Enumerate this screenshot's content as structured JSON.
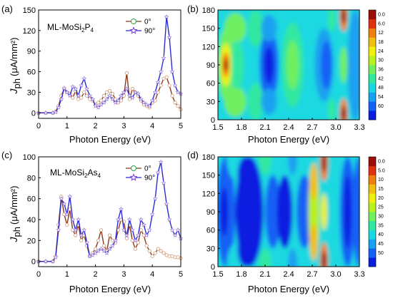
{
  "chart_data": [
    {
      "type": "line",
      "panel": "(a)",
      "xlabel": "Photon Energy (eV)",
      "ylabel_main": "J",
      "ylabel_sub": "ph",
      "ylabel_unit": "(μA/mm²)",
      "annotation": {
        "prefix": "ML-MoSi",
        "sub1": "2",
        "mid": "P",
        "sub2": "4"
      },
      "xlim": [
        0,
        5
      ],
      "ylim": [
        -8,
        150
      ],
      "xticks": [
        0,
        1,
        2,
        3,
        4,
        5
      ],
      "yticks": [
        0,
        30,
        60,
        90,
        120,
        150
      ],
      "series": [
        {
          "name": "0°",
          "color": "#8b3a1a",
          "marker": "circle",
          "x": [
            0,
            0.25,
            0.5,
            0.6,
            0.7,
            0.8,
            0.9,
            1.0,
            1.1,
            1.2,
            1.3,
            1.4,
            1.5,
            1.6,
            1.7,
            1.8,
            1.9,
            2.0,
            2.1,
            2.2,
            2.3,
            2.4,
            2.5,
            2.6,
            2.7,
            2.8,
            2.9,
            3.0,
            3.1,
            3.2,
            3.3,
            3.4,
            3.5,
            3.6,
            3.7,
            3.8,
            3.9,
            4.0,
            4.1,
            4.2,
            4.3,
            4.4,
            4.5,
            4.6,
            4.7,
            4.8,
            4.9,
            5.0
          ],
          "y": [
            0,
            0,
            0,
            2,
            10,
            25,
            35,
            30,
            28,
            22,
            32,
            20,
            22,
            30,
            25,
            20,
            18,
            12,
            15,
            18,
            25,
            30,
            32,
            28,
            20,
            15,
            18,
            25,
            58,
            20,
            35,
            30,
            25,
            18,
            12,
            10,
            8,
            15,
            18,
            30,
            40,
            50,
            52,
            40,
            25,
            15,
            10,
            5
          ]
        },
        {
          "name": "90°",
          "color": "#2b2bd6",
          "marker": "star",
          "x": [
            0,
            0.25,
            0.5,
            0.6,
            0.7,
            0.8,
            0.9,
            1.0,
            1.1,
            1.2,
            1.3,
            1.4,
            1.5,
            1.6,
            1.7,
            1.8,
            1.9,
            2.0,
            2.1,
            2.2,
            2.3,
            2.4,
            2.5,
            2.6,
            2.7,
            2.8,
            2.9,
            3.0,
            3.1,
            3.2,
            3.3,
            3.4,
            3.5,
            3.6,
            3.7,
            3.8,
            3.9,
            4.0,
            4.1,
            4.2,
            4.3,
            4.4,
            4.5,
            4.6,
            4.7,
            4.8,
            4.9,
            5.0
          ],
          "y": [
            0,
            0,
            0,
            1,
            8,
            20,
            36,
            30,
            25,
            38,
            35,
            25,
            40,
            50,
            35,
            25,
            20,
            10,
            8,
            12,
            15,
            20,
            25,
            20,
            15,
            18,
            25,
            30,
            35,
            25,
            22,
            30,
            28,
            20,
            15,
            12,
            10,
            18,
            30,
            45,
            60,
            80,
            140,
            110,
            60,
            40,
            30,
            28
          ]
        }
      ]
    },
    {
      "type": "heatmap",
      "panel": "(b)",
      "xlabel": "Photon Energy (eV)",
      "xlim": [
        1.5,
        3.3
      ],
      "ylim": [
        0,
        180
      ],
      "xticks": [
        "1.5",
        "1.8",
        "2.1",
        "2.4",
        "2.7",
        "3.0",
        "3.3"
      ],
      "yticks": [
        0,
        30,
        60,
        90,
        120,
        150,
        180
      ],
      "colorbar": {
        "ticks": [
          "0.0",
          "6.0",
          "12",
          "18",
          "24",
          "30",
          "36",
          "42",
          "48",
          "54",
          "60"
        ],
        "colors": [
          "#0a1ee0",
          "#1560f5",
          "#1aa0f0",
          "#1ad8e0",
          "#30e8a0",
          "#70f060",
          "#b8f020",
          "#f0f010",
          "#f0c010",
          "#f08010",
          "#e03010",
          "#9a1008"
        ]
      }
    },
    {
      "type": "line",
      "panel": "(c)",
      "xlabel": "Photon Energy (eV)",
      "ylabel_main": "J",
      "ylabel_sub": "ph",
      "ylabel_unit": "(μA/mm²)",
      "annotation": {
        "prefix": "ML-MoSi",
        "sub1": "2",
        "mid": "As",
        "sub2": "4"
      },
      "xlim": [
        0,
        5
      ],
      "ylim": [
        -5,
        100
      ],
      "xticks": [
        0,
        1,
        2,
        3,
        4,
        5
      ],
      "yticks": [
        0,
        20,
        40,
        60,
        80,
        100
      ],
      "series": [
        {
          "name": "0°",
          "color": "#8b3a1a",
          "marker": "circle",
          "x": [
            0,
            0.25,
            0.5,
            0.6,
            0.7,
            0.8,
            0.9,
            1.0,
            1.1,
            1.2,
            1.3,
            1.4,
            1.5,
            1.6,
            1.7,
            1.8,
            1.9,
            2.0,
            2.1,
            2.2,
            2.3,
            2.4,
            2.5,
            2.6,
            2.7,
            2.8,
            2.9,
            3.0,
            3.1,
            3.2,
            3.3,
            3.4,
            3.5,
            3.6,
            3.7,
            3.8,
            3.9,
            4.0,
            4.1,
            4.2,
            4.3,
            4.4,
            4.5,
            4.6,
            4.7,
            4.8,
            4.9,
            5.0
          ],
          "y": [
            0,
            0,
            0,
            5,
            35,
            62,
            45,
            35,
            50,
            30,
            25,
            35,
            20,
            25,
            15,
            5,
            8,
            12,
            20,
            30,
            15,
            10,
            25,
            20,
            18,
            30,
            40,
            38,
            22,
            35,
            20,
            12,
            18,
            30,
            25,
            15,
            10,
            5,
            8,
            12,
            10,
            8,
            6,
            5,
            5,
            4,
            4,
            3
          ]
        },
        {
          "name": "90°",
          "color": "#2b2bd6",
          "marker": "star",
          "x": [
            0,
            0.25,
            0.5,
            0.6,
            0.7,
            0.8,
            0.9,
            1.0,
            1.1,
            1.2,
            1.3,
            1.4,
            1.5,
            1.6,
            1.7,
            1.8,
            1.9,
            2.0,
            2.1,
            2.2,
            2.3,
            2.4,
            2.5,
            2.6,
            2.7,
            2.8,
            2.9,
            3.0,
            3.1,
            3.2,
            3.3,
            3.4,
            3.5,
            3.6,
            3.7,
            3.8,
            3.9,
            4.0,
            4.1,
            4.2,
            4.3,
            4.4,
            4.5,
            4.6,
            4.7,
            4.8,
            4.9,
            5.0
          ],
          "y": [
            0,
            0,
            0,
            4,
            30,
            60,
            55,
            45,
            62,
            40,
            30,
            40,
            25,
            30,
            18,
            5,
            6,
            8,
            10,
            12,
            10,
            8,
            12,
            15,
            20,
            40,
            50,
            30,
            25,
            40,
            30,
            20,
            25,
            40,
            35,
            25,
            30,
            45,
            60,
            85,
            95,
            75,
            55,
            40,
            30,
            25,
            30,
            22
          ]
        }
      ]
    },
    {
      "type": "heatmap",
      "panel": "(d)",
      "xlabel": "Photon Energy (eV)",
      "xlim": [
        1.5,
        3.3
      ],
      "ylim": [
        0,
        180
      ],
      "xticks": [
        "1.5",
        "1.8",
        "2.1",
        "2.4",
        "2.7",
        "3.0",
        "3.3"
      ],
      "yticks": [
        0,
        30,
        60,
        90,
        120,
        150,
        180
      ],
      "colorbar": {
        "ticks": [
          "0.0",
          "5.0",
          "10",
          "15",
          "20",
          "25",
          "30",
          "35",
          "40",
          "45",
          "50"
        ],
        "colors": [
          "#0a1ee0",
          "#1560f5",
          "#1aa0f0",
          "#1ad8e0",
          "#30e8a0",
          "#70f060",
          "#b8f020",
          "#f0f010",
          "#f0c010",
          "#f08010",
          "#e03010",
          "#9a1008"
        ]
      }
    }
  ]
}
